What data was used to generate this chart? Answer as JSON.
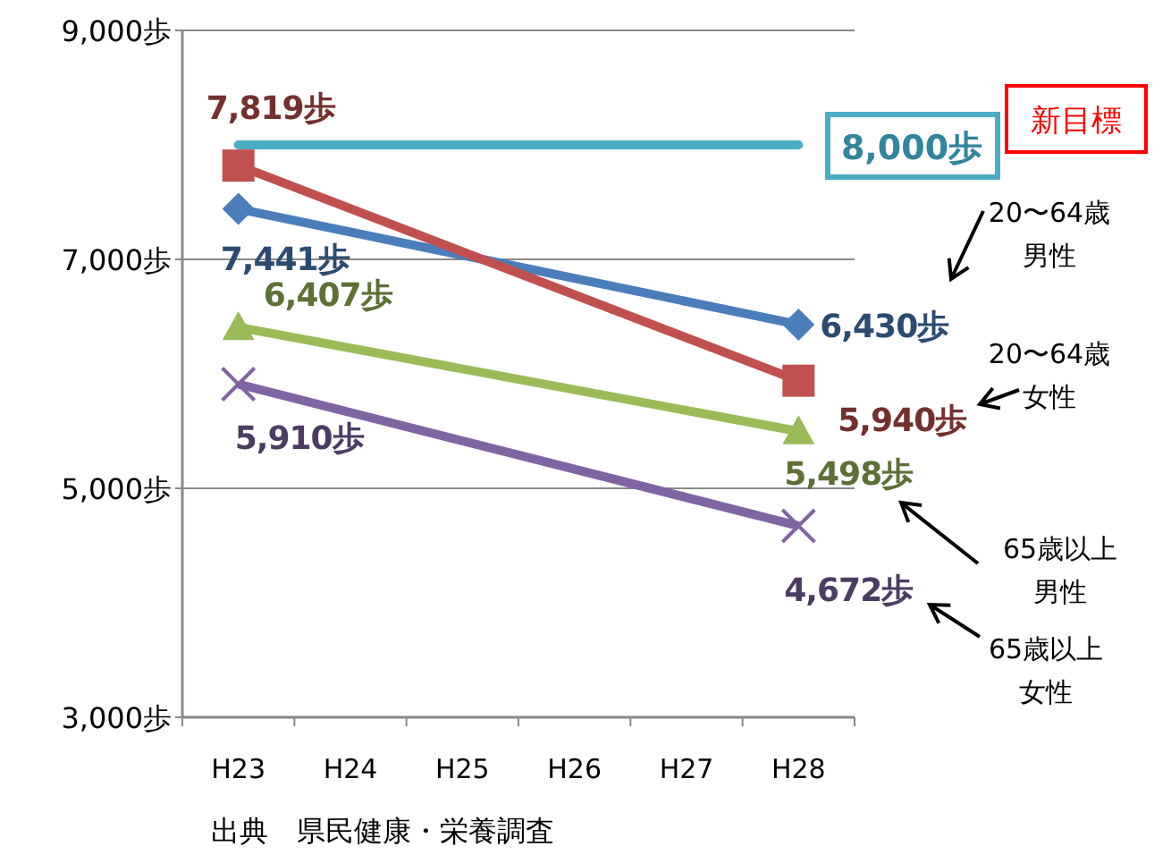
{
  "chart_data": {
    "type": "line",
    "categories": [
      "H23",
      "H24",
      "H25",
      "H26",
      "H27",
      "H28"
    ],
    "ylim": [
      3000,
      9000
    ],
    "yticks": [
      {
        "value": 3000,
        "label": "3,000歩"
      },
      {
        "value": 5000,
        "label": "5,000歩"
      },
      {
        "value": 7000,
        "label": "7,000歩"
      },
      {
        "value": 9000,
        "label": "9,000歩"
      }
    ],
    "grid": "y",
    "legend": false,
    "series": [
      {
        "name": "20〜64歳男性",
        "color": "#4a7ebb",
        "marker": "diamond",
        "values": [
          7441,
          null,
          null,
          null,
          null,
          6430
        ],
        "value_labels": [
          "7,441歩",
          null,
          null,
          null,
          null,
          "6,430歩"
        ]
      },
      {
        "name": "20〜64歳女性",
        "color": "#c0504d",
        "marker": "square",
        "values": [
          7819,
          null,
          null,
          null,
          null,
          5940
        ],
        "value_labels": [
          "7,819歩",
          null,
          null,
          null,
          null,
          "5,940歩"
        ]
      },
      {
        "name": "65歳以上男性",
        "color": "#9bbb59",
        "marker": "triangle",
        "values": [
          6407,
          null,
          null,
          null,
          null,
          5498
        ],
        "value_labels": [
          "6,407歩",
          null,
          null,
          null,
          null,
          "5,498歩"
        ]
      },
      {
        "name": "65歳以上女性",
        "color": "#8064a2",
        "marker": "cross",
        "values": [
          5910,
          null,
          null,
          null,
          null,
          4672
        ],
        "value_labels": [
          "5,910歩",
          null,
          null,
          null,
          null,
          "4,672歩"
        ]
      }
    ],
    "ref_lines": [
      {
        "axis": "y",
        "value": 8000,
        "label": "8,000歩",
        "color": "#4bacc6"
      }
    ],
    "annotations": [
      "新目標",
      "出典　県民健康・栄養調査"
    ]
  }
}
